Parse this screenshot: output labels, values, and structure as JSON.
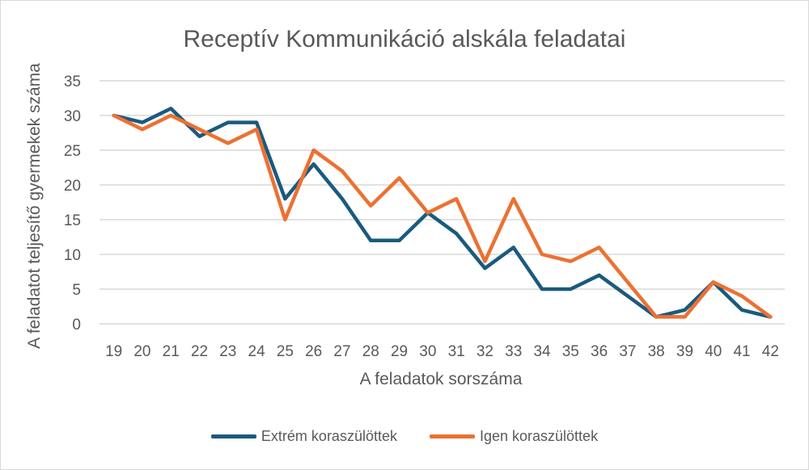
{
  "chart_data": {
    "type": "line",
    "title": "Receptív Kommunikáció alskála feladatai",
    "xlabel": "A feladatok sorszáma",
    "ylabel": "A feladatot teljesítő gyermekek száma",
    "categories": [
      "19",
      "20",
      "21",
      "22",
      "23",
      "24",
      "25",
      "26",
      "27",
      "28",
      "29",
      "30",
      "31",
      "32",
      "33",
      "34",
      "35",
      "36",
      "37",
      "38",
      "39",
      "40",
      "41",
      "42"
    ],
    "ylim": [
      0,
      35
    ],
    "yticks": [
      0,
      5,
      10,
      15,
      20,
      25,
      30,
      35
    ],
    "grid": true,
    "legend_position": "bottom",
    "series": [
      {
        "name": "Extrém koraszülöttek",
        "color": "#1a5a7e",
        "values": [
          30,
          29,
          31,
          27,
          29,
          29,
          18,
          23,
          18,
          12,
          12,
          16,
          13,
          8,
          11,
          5,
          5,
          7,
          4,
          1,
          2,
          6,
          2,
          1
        ]
      },
      {
        "name": "Igen koraszülöttek",
        "color": "#ec7132",
        "values": [
          30,
          28,
          30,
          28,
          26,
          28,
          15,
          25,
          22,
          17,
          21,
          16,
          18,
          9,
          18,
          10,
          9,
          11,
          6,
          1,
          1,
          6,
          4,
          1
        ]
      }
    ]
  }
}
